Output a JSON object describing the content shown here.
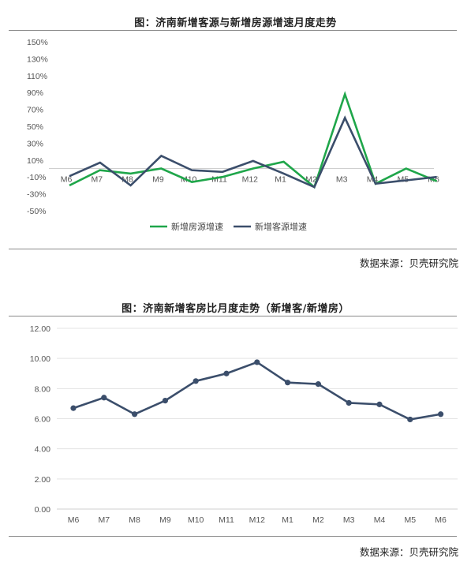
{
  "chart_data": [
    {
      "type": "line",
      "title": "图：济南新增客源与新增房源增速月度走势",
      "source": "数据来源：贝壳研究院",
      "categories": [
        "M6",
        "M7",
        "M8",
        "M9",
        "M10",
        "M11",
        "M12",
        "M1",
        "M2",
        "M3",
        "M4",
        "M5",
        "M6"
      ],
      "y_ticks": [
        "150%",
        "130%",
        "110%",
        "90%",
        "70%",
        "50%",
        "30%",
        "10%",
        "-10%",
        "-30%",
        "-50%"
      ],
      "ylim": [
        -50,
        150
      ],
      "legend_position": "bottom",
      "grid": false,
      "series": [
        {
          "name": "新增房源增速",
          "color": "#1FA64A",
          "values": [
            -20,
            -2,
            -6,
            0,
            -16,
            -10,
            0,
            8,
            -22,
            88,
            -18,
            0,
            -15
          ]
        },
        {
          "name": "新增客源增速",
          "color": "#3B4E6B",
          "values": [
            -9,
            7,
            -20,
            15,
            -2,
            -4,
            9,
            -6,
            -22,
            60,
            -18,
            -14,
            -10
          ]
        }
      ]
    },
    {
      "type": "line",
      "title": "图：济南新增客房比月度走势（新增客/新增房）",
      "source": "数据来源：贝壳研究院",
      "categories": [
        "M6",
        "M7",
        "M8",
        "M9",
        "M10",
        "M11",
        "M12",
        "M1",
        "M2",
        "M3",
        "M4",
        "M5",
        "M6"
      ],
      "y_ticks": [
        "12.00",
        "10.00",
        "8.00",
        "6.00",
        "4.00",
        "2.00",
        "0.00"
      ],
      "ylim": [
        0,
        12
      ],
      "grid": true,
      "series": [
        {
          "color": "#3B4E6B",
          "values": [
            6.7,
            7.4,
            6.3,
            7.2,
            8.5,
            9.0,
            9.75,
            8.4,
            8.3,
            7.05,
            6.95,
            5.95,
            6.3
          ]
        }
      ]
    }
  ]
}
